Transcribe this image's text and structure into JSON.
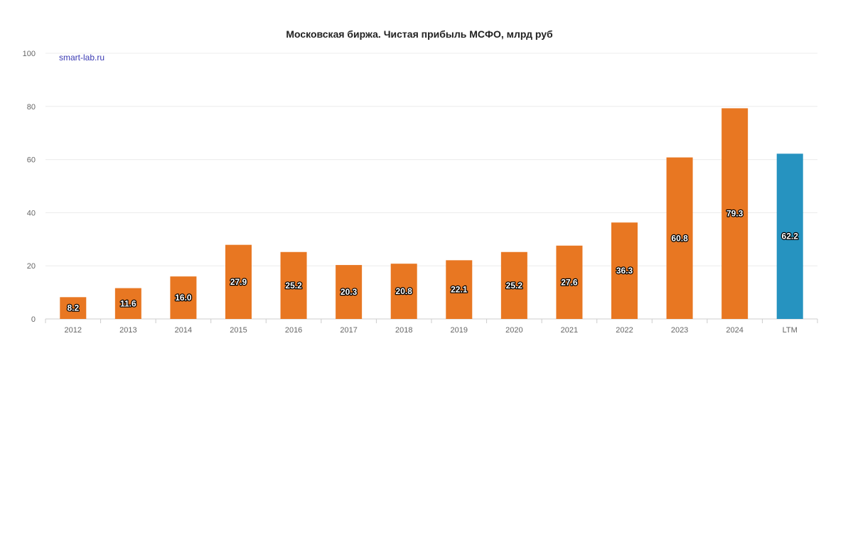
{
  "chart_data": {
    "type": "bar",
    "title": "Московская биржа. Чистая прибыль МСФО, млрд руб",
    "watermark": "smart-lab.ru",
    "categories": [
      "2012",
      "2013",
      "2014",
      "2015",
      "2016",
      "2017",
      "2018",
      "2019",
      "2020",
      "2021",
      "2022",
      "2023",
      "2024",
      "LTM"
    ],
    "series": [
      {
        "values": [
          8.2,
          11.6,
          16.0,
          27.9,
          25.2,
          20.3,
          20.8,
          22.1,
          25.2,
          27.6,
          36.3,
          60.8,
          79.3,
          62.2
        ],
        "labels": [
          "8.2",
          "11.6",
          "16.0",
          "27.9",
          "25.2",
          "20.3",
          "20.8",
          "22.1",
          "25.2",
          "27.6",
          "36.3",
          "60.8",
          "79.3",
          "62.2"
        ],
        "colors": [
          "#e87722",
          "#e87722",
          "#e87722",
          "#e87722",
          "#e87722",
          "#e87722",
          "#e87722",
          "#e87722",
          "#e87722",
          "#e87722",
          "#e87722",
          "#e87722",
          "#e87722",
          "#2693c0"
        ]
      }
    ],
    "ylim": [
      0,
      100
    ],
    "yticks": [
      0,
      20,
      40,
      60,
      80,
      100
    ],
    "grid": true,
    "legend": "none"
  }
}
